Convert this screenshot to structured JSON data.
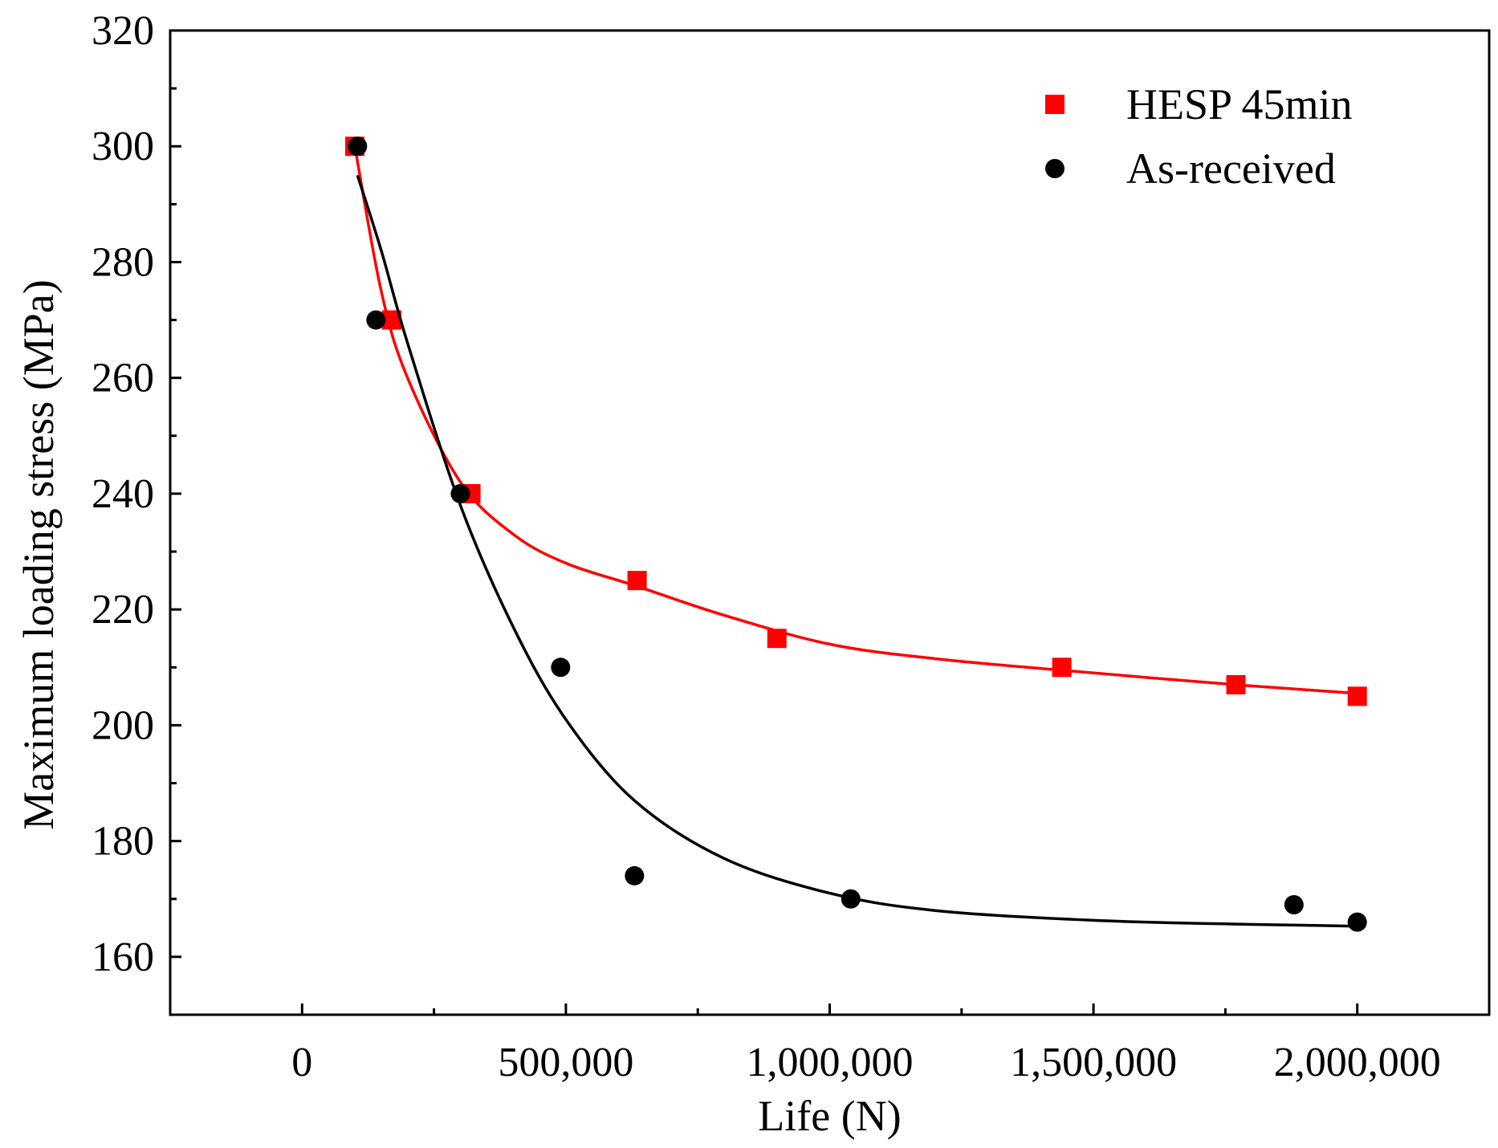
{
  "chart_data": {
    "type": "scatter",
    "title": "",
    "xlabel": "Life (N)",
    "ylabel": "Maximum loading stress (MPa)",
    "xlim": [
      -250000,
      2250000
    ],
    "ylim": [
      150,
      320
    ],
    "x_ticks": [
      0,
      500000,
      1000000,
      1500000,
      2000000
    ],
    "x_tick_labels": [
      "0",
      "500,000",
      "1,000,000",
      "1,500,000",
      "2,000,000"
    ],
    "y_ticks": [
      160,
      180,
      200,
      220,
      240,
      260,
      280,
      300,
      320
    ],
    "y_tick_labels": [
      "160",
      "180",
      "200",
      "220",
      "240",
      "260",
      "280",
      "300",
      "320"
    ],
    "grid": false,
    "legend_position": "top-right",
    "series": [
      {
        "name": "HESP 45min",
        "marker": "square",
        "color": "#ff0000",
        "points": [
          [
            100000,
            300
          ],
          [
            170000,
            270
          ],
          [
            320000,
            240
          ],
          [
            635000,
            225
          ],
          [
            900000,
            215
          ],
          [
            1440000,
            210
          ],
          [
            1770000,
            207
          ],
          [
            2000000,
            205
          ]
        ],
        "fit_curve": [
          [
            100000,
            300
          ],
          [
            150000,
            275
          ],
          [
            200000,
            260
          ],
          [
            300000,
            242
          ],
          [
            400000,
            233
          ],
          [
            500000,
            228
          ],
          [
            635000,
            224
          ],
          [
            800000,
            219
          ],
          [
            1000000,
            214
          ],
          [
            1200000,
            211.5
          ],
          [
            1440000,
            209.5
          ],
          [
            1770000,
            207
          ],
          [
            2000000,
            205.5
          ]
        ]
      },
      {
        "name": "As-received",
        "marker": "circle",
        "color": "#000000",
        "points": [
          [
            105000,
            300
          ],
          [
            140000,
            270
          ],
          [
            300000,
            240
          ],
          [
            490000,
            210
          ],
          [
            630000,
            174
          ],
          [
            1040000,
            170
          ],
          [
            1880000,
            169
          ],
          [
            2000000,
            166
          ]
        ],
        "fit_curve": [
          [
            105000,
            295
          ],
          [
            150000,
            282
          ],
          [
            200000,
            266
          ],
          [
            300000,
            238
          ],
          [
            400000,
            217
          ],
          [
            500000,
            201
          ],
          [
            630000,
            187
          ],
          [
            800000,
            177
          ],
          [
            1000000,
            171
          ],
          [
            1200000,
            168
          ],
          [
            1500000,
            166.3
          ],
          [
            1800000,
            165.6
          ],
          [
            2000000,
            165.3
          ]
        ]
      }
    ]
  }
}
